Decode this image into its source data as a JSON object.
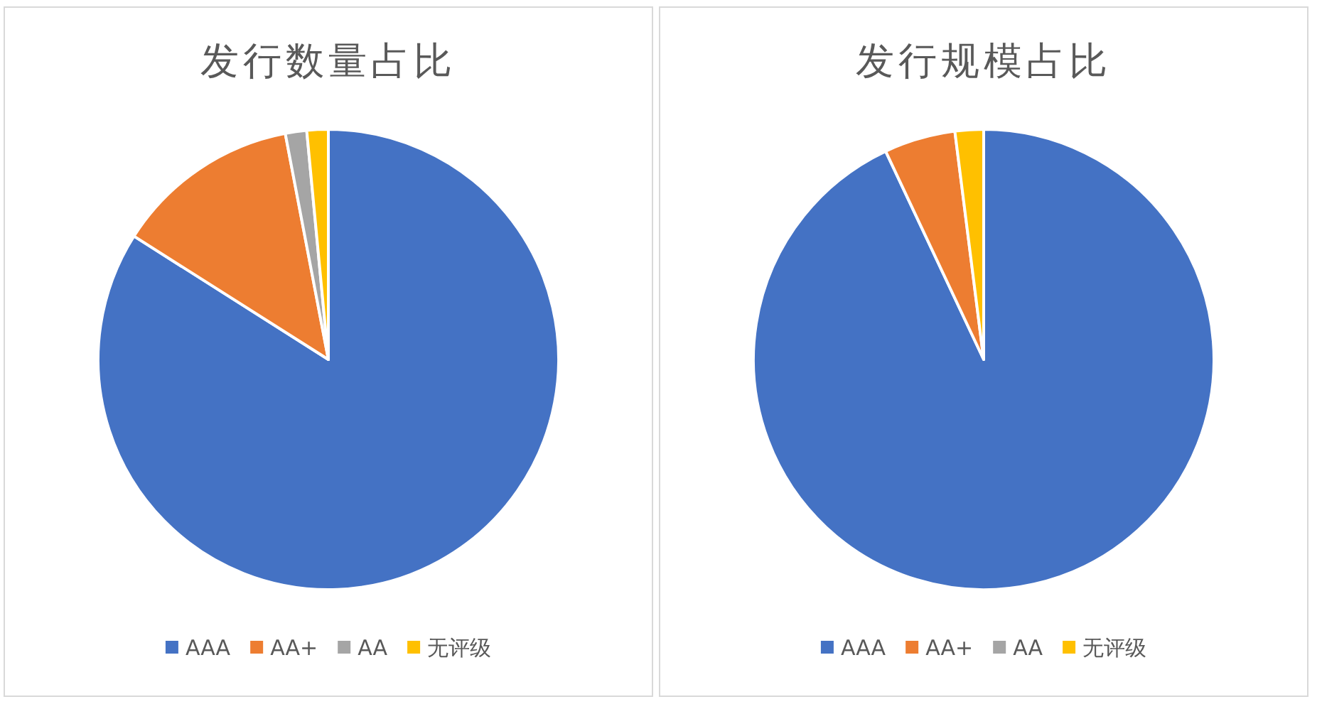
{
  "chart_data": [
    {
      "type": "pie",
      "title": "发行数量占比",
      "categories": [
        "AAA",
        "AA+",
        "AA",
        "无评级"
      ],
      "values": [
        84,
        13,
        1.5,
        1.5
      ],
      "colors": [
        "#4472c4",
        "#ed7d31",
        "#a5a5a5",
        "#ffc000"
      ],
      "legend": "bottom"
    },
    {
      "type": "pie",
      "title": "发行规模占比",
      "categories": [
        "AAA",
        "AA+",
        "AA",
        "无评级"
      ],
      "values": [
        93,
        5,
        0,
        2
      ],
      "colors": [
        "#4472c4",
        "#ed7d31",
        "#a5a5a5",
        "#ffc000"
      ],
      "legend": "bottom"
    }
  ]
}
